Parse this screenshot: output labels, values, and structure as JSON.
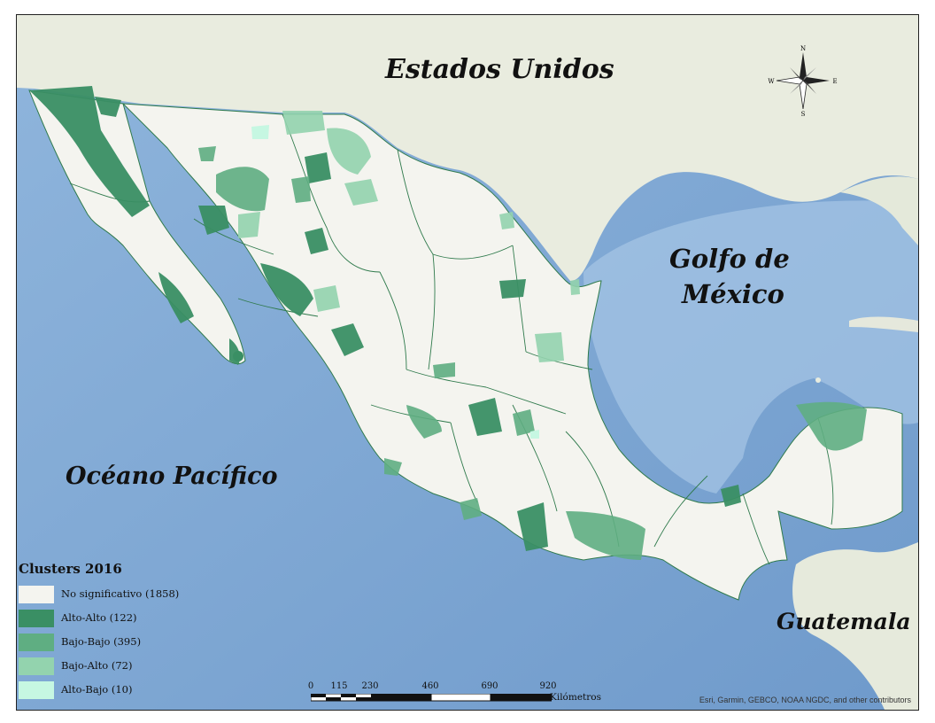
{
  "labels": {
    "usa": "Estados Unidos",
    "gulf_line1": "Golfo de",
    "gulf_line2": "México",
    "pacific": "Océano Pacífico",
    "guatemala": "Guatemala"
  },
  "legend": {
    "title": "Clusters 2016",
    "items": [
      {
        "label": "No significativo (1858)",
        "color": "#f4f4ef"
      },
      {
        "label": "Alto-Alto (122)",
        "color": "#3a8f64"
      },
      {
        "label": "Bajo-Bajo (395)",
        "color": "#5fae82"
      },
      {
        "label": "Bajo-Alto (72)",
        "color": "#93d3ae"
      },
      {
        "label": "Alto-Bajo (10)",
        "color": "#c6f7e2"
      }
    ]
  },
  "scale": {
    "ticks": [
      "0",
      "115",
      "230",
      "460",
      "690",
      "920"
    ],
    "unit": "Kilómetros"
  },
  "compass": {
    "n": "N",
    "s": "S",
    "e": "E",
    "w": "W"
  },
  "credits": "Esri, Garmin, GEBCO, NOAA NGDC, and other contributors",
  "colors": {
    "ocean": "#7ea9d4",
    "shallow": "#b9d3ea",
    "land_neighbor": "#e8ecdf",
    "mexico_fill": "#f4f4ef",
    "border": "#2f7a4c"
  }
}
